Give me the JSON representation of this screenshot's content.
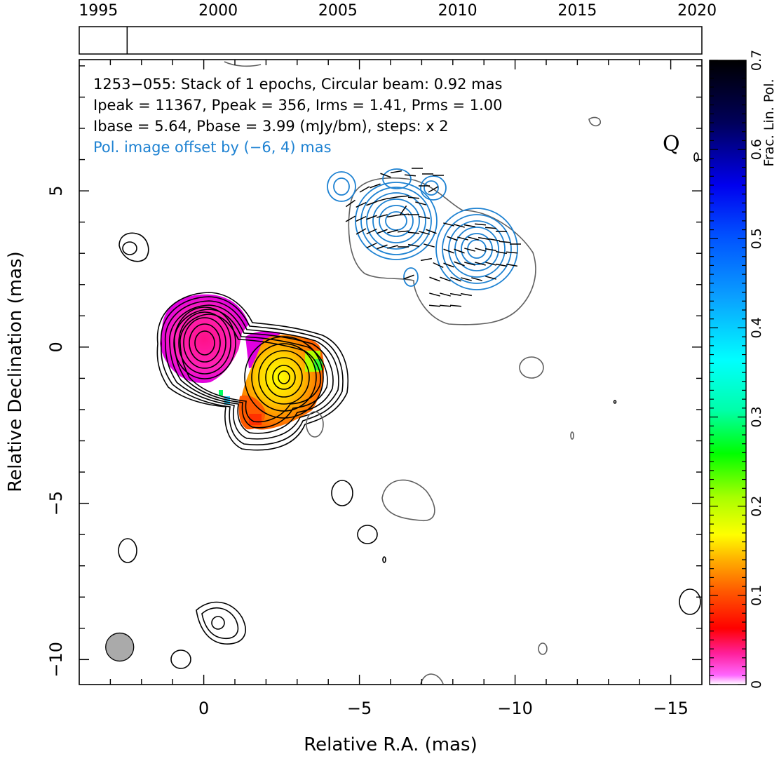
{
  "timeline": {
    "ticks": [
      "1995",
      "2000",
      "2005",
      "2010",
      "2015",
      "2020"
    ],
    "range": [
      1994.2,
      2020.2
    ],
    "marker_year": 1996.2
  },
  "chart_data": {
    "type": "contour",
    "xlabel": "Relative R.A. (mas)",
    "ylabel": "Relative Declination (mas)",
    "xlim": [
      4,
      -16
    ],
    "ylim": [
      -10.8,
      9.2
    ],
    "x_ticks": [
      {
        "v": 0,
        "t": "0"
      },
      {
        "v": -5,
        "t": "−5"
      },
      {
        "v": -10,
        "t": "−10"
      },
      {
        "v": -15,
        "t": "−15"
      }
    ],
    "y_ticks": [
      {
        "v": 5,
        "t": "5"
      },
      {
        "v": 0,
        "t": "0"
      },
      {
        "v": -5,
        "t": "−5"
      },
      {
        "v": -10,
        "t": "−10"
      }
    ],
    "annotations": [
      "1253−055: Stack of 1 epochs, Circular beam: 0.92 mas",
      "Ipeak = 11367, Ppeak = 356, Irms = 1.41, Prms = 1.00",
      "Ibase = 5.64, Pbase = 3.99 (mJy/bm), steps: x 2",
      "Pol. image offset by (−6, 4) mas"
    ],
    "quasar_label": "Q",
    "beam": {
      "x": 2.7,
      "y": -9.6,
      "diameter": 0.92
    },
    "colorbar": {
      "label": "Frac. Lin. Pol.",
      "range": [
        0,
        0.7
      ],
      "ticks": [
        "0",
        "0.1",
        "0.2",
        "0.3",
        "0.4",
        "0.5",
        "0.6",
        "0.7"
      ]
    },
    "colors": {
      "stokes_i": "#000000",
      "polarized_offset": "#1e82d2",
      "negative": "#606060",
      "beam_fill": "#aaaaaa"
    }
  }
}
